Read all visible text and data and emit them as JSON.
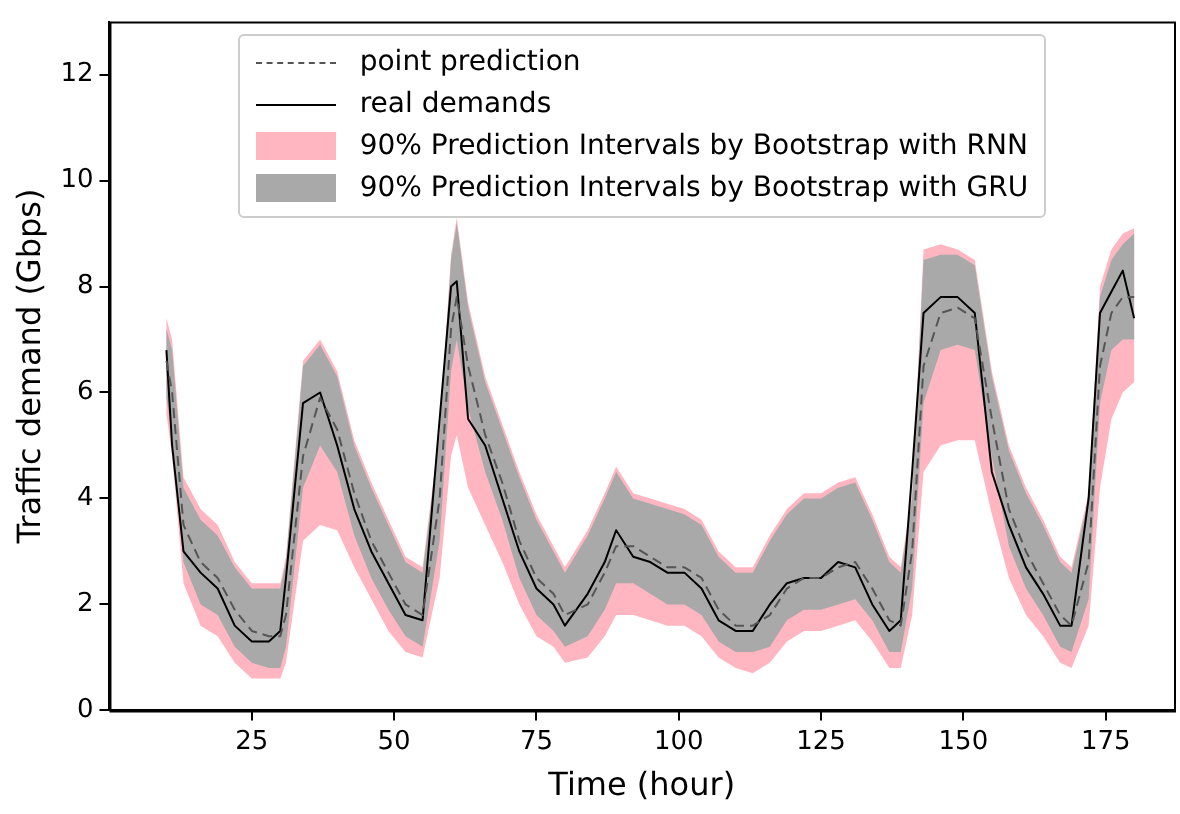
{
  "chart_data": {
    "type": "line",
    "xlabel": "Time (hour)",
    "ylabel": "Traffic demand (Gbps)",
    "x": [
      10,
      11,
      13,
      16,
      19,
      22,
      25,
      28,
      30,
      31,
      34,
      37,
      40,
      43,
      46,
      49,
      52,
      55,
      58,
      60,
      61,
      63,
      66,
      69,
      72,
      75,
      78,
      80,
      84,
      87,
      89,
      92,
      95,
      98,
      101,
      104,
      107,
      110,
      113,
      116,
      119,
      122,
      125,
      128,
      131,
      134,
      137,
      139,
      141,
      143,
      146,
      149,
      152,
      155,
      158,
      161,
      164,
      167,
      169,
      172,
      174,
      176,
      178,
      180
    ],
    "series": [
      {
        "name": "point prediction",
        "color": "#555555",
        "line_style": "dashed",
        "values": [
          6.6,
          6.0,
          3.5,
          2.8,
          2.5,
          1.9,
          1.5,
          1.4,
          1.4,
          1.8,
          4.8,
          5.9,
          5.3,
          4.1,
          3.2,
          2.6,
          2.0,
          1.8,
          4.0,
          7.2,
          7.8,
          6.5,
          5.2,
          4.3,
          3.2,
          2.5,
          2.2,
          1.8,
          2.0,
          2.6,
          3.1,
          3.1,
          2.9,
          2.7,
          2.7,
          2.5,
          1.9,
          1.6,
          1.6,
          1.8,
          2.3,
          2.5,
          2.5,
          2.7,
          2.8,
          2.3,
          1.7,
          1.6,
          3.0,
          6.5,
          7.5,
          7.6,
          7.4,
          5.5,
          3.8,
          3.0,
          2.4,
          1.8,
          1.6,
          2.8,
          6.5,
          7.5,
          7.8,
          7.8
        ]
      },
      {
        "name": "real demands",
        "color": "#000000",
        "line_style": "solid",
        "values": [
          6.8,
          5.0,
          3.0,
          2.6,
          2.3,
          1.6,
          1.3,
          1.3,
          1.5,
          2.5,
          5.8,
          6.0,
          5.0,
          3.8,
          3.0,
          2.4,
          1.8,
          1.7,
          5.5,
          8.0,
          8.1,
          5.5,
          5.0,
          4.0,
          3.0,
          2.3,
          2.0,
          1.6,
          2.2,
          2.8,
          3.4,
          2.9,
          2.8,
          2.6,
          2.6,
          2.3,
          1.7,
          1.5,
          1.5,
          2.0,
          2.4,
          2.5,
          2.5,
          2.8,
          2.7,
          2.0,
          1.5,
          1.7,
          4.5,
          7.5,
          7.8,
          7.8,
          7.5,
          4.5,
          3.5,
          2.7,
          2.2,
          1.6,
          1.6,
          4.0,
          7.5,
          7.9,
          8.3,
          7.4
        ]
      },
      {
        "name": "90% Prediction Intervals by Bootstrap with RNN",
        "type": "area",
        "color": "#ffb6c1",
        "values": [
          null,
          null,
          null,
          null,
          null,
          null,
          null,
          null,
          null,
          null,
          null,
          null,
          null,
          null,
          null,
          null,
          null,
          null,
          null,
          null,
          null,
          null,
          null,
          null,
          null,
          null,
          null,
          null,
          null,
          null,
          null,
          null,
          null,
          null,
          null,
          null,
          null,
          null,
          null,
          null,
          null,
          null,
          null,
          null,
          null,
          null,
          null,
          null,
          null,
          null,
          null,
          null,
          null,
          null,
          null,
          null,
          null,
          null,
          null,
          null,
          null,
          null,
          null,
          null
        ],
        "lower": [
          5.6,
          4.8,
          2.4,
          1.6,
          1.4,
          0.9,
          0.6,
          0.6,
          0.6,
          0.9,
          3.2,
          3.5,
          3.4,
          2.7,
          2.1,
          1.5,
          1.1,
          1.0,
          2.5,
          4.8,
          5.2,
          4.2,
          3.5,
          2.8,
          2.0,
          1.4,
          1.2,
          0.9,
          1.0,
          1.4,
          1.8,
          1.8,
          1.7,
          1.6,
          1.6,
          1.4,
          1.0,
          0.8,
          0.7,
          0.9,
          1.3,
          1.5,
          1.5,
          1.6,
          1.7,
          1.3,
          0.8,
          0.8,
          1.8,
          4.5,
          5.0,
          5.1,
          5.1,
          3.7,
          2.5,
          1.8,
          1.4,
          0.9,
          0.8,
          1.6,
          4.2,
          5.5,
          6.0,
          6.2
        ],
        "upper": [
          7.4,
          7.0,
          4.4,
          3.8,
          3.5,
          2.8,
          2.4,
          2.4,
          2.4,
          2.9,
          6.6,
          7.0,
          6.4,
          5.1,
          4.3,
          3.6,
          2.9,
          2.7,
          5.3,
          8.6,
          9.3,
          7.7,
          6.3,
          5.4,
          4.5,
          3.7,
          3.1,
          2.7,
          3.4,
          4.1,
          4.6,
          4.1,
          4.0,
          3.9,
          3.8,
          3.6,
          3.0,
          2.7,
          2.7,
          3.3,
          3.8,
          4.1,
          4.1,
          4.3,
          4.4,
          3.7,
          2.9,
          2.7,
          4.1,
          8.7,
          8.8,
          8.7,
          8.5,
          6.4,
          5.0,
          4.2,
          3.6,
          2.9,
          2.7,
          4.1,
          8.0,
          8.7,
          9.0,
          9.1
        ]
      },
      {
        "name": "90% Prediction Intervals by Bootstrap with GRU",
        "type": "area",
        "color": "#a9a9a9",
        "values": [
          null,
          null,
          null,
          null,
          null,
          null,
          null,
          null,
          null,
          null,
          null,
          null,
          null,
          null,
          null,
          null,
          null,
          null,
          null,
          null,
          null,
          null,
          null,
          null,
          null,
          null,
          null,
          null,
          null,
          null,
          null,
          null,
          null,
          null,
          null,
          null,
          null,
          null,
          null,
          null,
          null,
          null,
          null,
          null,
          null,
          null,
          null,
          null,
          null,
          null,
          null,
          null,
          null,
          null,
          null,
          null,
          null,
          null,
          null,
          null,
          null,
          null,
          null,
          null
        ],
        "lower": [
          5.9,
          5.2,
          2.8,
          2.0,
          1.8,
          1.2,
          0.9,
          0.8,
          0.8,
          1.2,
          4.2,
          5.0,
          4.5,
          3.3,
          2.5,
          1.9,
          1.4,
          1.2,
          3.2,
          6.4,
          7.0,
          5.7,
          4.5,
          3.6,
          2.5,
          1.8,
          1.5,
          1.2,
          1.4,
          1.9,
          2.4,
          2.4,
          2.2,
          2.0,
          2.0,
          1.8,
          1.3,
          1.1,
          1.1,
          1.2,
          1.7,
          1.9,
          1.9,
          2.0,
          2.1,
          1.7,
          1.1,
          1.1,
          2.3,
          5.8,
          6.8,
          6.9,
          6.8,
          4.8,
          3.1,
          2.3,
          1.8,
          1.2,
          1.1,
          2.1,
          5.8,
          6.8,
          7.0,
          7.0
        ],
        "upper": [
          7.2,
          6.8,
          4.2,
          3.6,
          3.3,
          2.7,
          2.3,
          2.3,
          2.3,
          2.8,
          6.5,
          6.9,
          6.3,
          5.0,
          4.2,
          3.5,
          2.8,
          2.6,
          5.2,
          8.5,
          9.2,
          7.6,
          6.2,
          5.3,
          4.4,
          3.6,
          3.0,
          2.6,
          3.3,
          4.0,
          4.5,
          4.0,
          3.9,
          3.8,
          3.7,
          3.5,
          2.9,
          2.6,
          2.6,
          3.2,
          3.7,
          4.0,
          4.0,
          4.2,
          4.3,
          3.6,
          2.8,
          2.6,
          4.0,
          8.5,
          8.6,
          8.6,
          8.4,
          6.3,
          4.9,
          4.1,
          3.5,
          2.8,
          2.6,
          4.0,
          7.8,
          8.5,
          8.8,
          9.0
        ]
      }
    ],
    "xlim": [
      0,
      187
    ],
    "xticks": [
      25,
      50,
      75,
      100,
      125,
      150,
      175
    ],
    "ylim": [
      0,
      13
    ],
    "yticks": [
      0,
      2,
      4,
      6,
      8,
      10,
      12
    ],
    "grid": false,
    "legend": "top",
    "marker": "none"
  }
}
